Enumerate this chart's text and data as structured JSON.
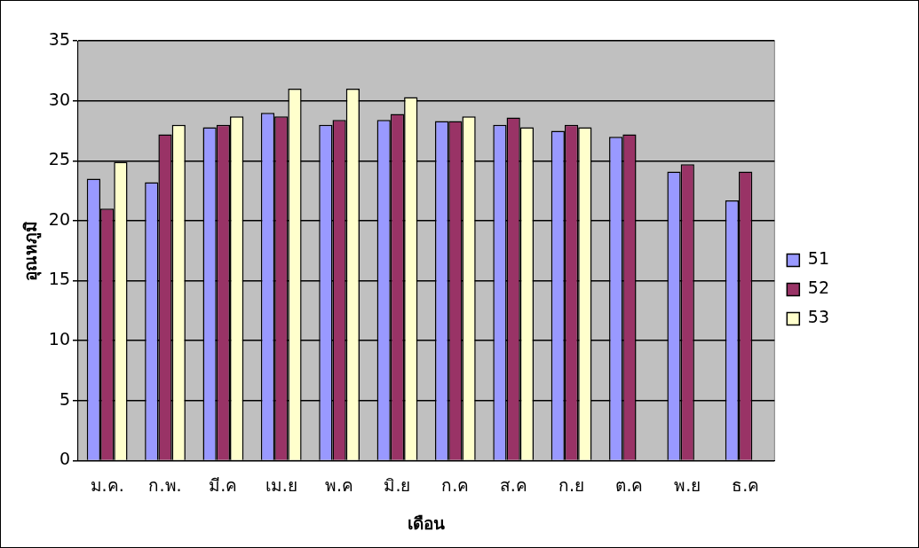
{
  "chart_data": {
    "type": "bar",
    "xlabel": "เดือน",
    "ylabel": "อุณหภูมิ",
    "categories": [
      "ม.ค.",
      "ก.พ.",
      "มี.ค",
      "เม.ย",
      "พ.ค",
      "มิ.ย",
      "ก.ค",
      "ส.ค",
      "ก.ย",
      "ต.ค",
      "พ.ย",
      "ธ.ค"
    ],
    "series": [
      {
        "name": "51",
        "color": "#9999ff",
        "values": [
          23.5,
          23.2,
          27.8,
          29.0,
          28.0,
          28.4,
          28.3,
          28.0,
          27.5,
          27.0,
          24.1,
          21.7
        ]
      },
      {
        "name": "52",
        "color": "#993366",
        "values": [
          21.0,
          27.2,
          28.0,
          28.7,
          28.4,
          28.9,
          28.3,
          28.6,
          28.0,
          27.2,
          24.7,
          24.1
        ]
      },
      {
        "name": "53",
        "color": "#ffffcc",
        "values": [
          24.9,
          28.0,
          28.7,
          31.0,
          31.0,
          30.3,
          28.7,
          27.8,
          27.8,
          null,
          null,
          null
        ]
      }
    ],
    "ylim": [
      0,
      35
    ],
    "yticks": [
      0,
      5,
      10,
      15,
      20,
      25,
      30,
      35
    ],
    "grid": "y",
    "legend": "right"
  }
}
